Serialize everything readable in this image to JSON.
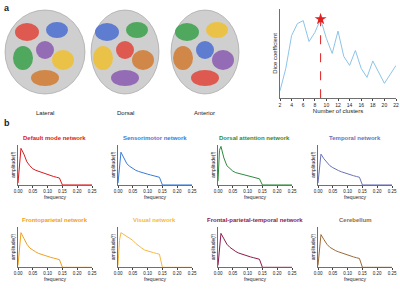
{
  "figure": {
    "panel_labels": [
      "a",
      "b"
    ],
    "views": [
      "Lateral",
      "Dorsal",
      "Anterior"
    ]
  },
  "chart_data": [
    {
      "type": "line",
      "x_label": "Number of clusters",
      "y_label": "Dice coefficient",
      "x": [
        2,
        3,
        4,
        5,
        6,
        7,
        8,
        9,
        10,
        11,
        12,
        13,
        14,
        15,
        16,
        17,
        18,
        19,
        20,
        21,
        22
      ],
      "series": [
        {
          "color": "#8cc4e8",
          "values": [
            0.35,
            0.5,
            0.72,
            0.8,
            0.82,
            0.68,
            0.74,
            0.83,
            0.7,
            0.6,
            0.75,
            0.58,
            0.52,
            0.62,
            0.5,
            0.44,
            0.55,
            0.47,
            0.4,
            0.46,
            0.52
          ]
        },
        {
          "type": "scatter",
          "marker": "star",
          "color": "#e02020",
          "x": [
            9
          ],
          "values": [
            0.83
          ]
        },
        {
          "type": "line",
          "line_style": "dash",
          "color": "#e02020",
          "x": [
            9,
            9
          ],
          "values": [
            0.3,
            0.83
          ]
        }
      ],
      "xlim": [
        2,
        22
      ],
      "xticks": [
        2,
        4,
        6,
        8,
        10,
        12,
        14,
        16,
        18,
        20,
        22
      ],
      "ylim": [
        0.3,
        0.9
      ],
      "tick_labels": "x",
      "grid": false
    },
    {
      "type": "line",
      "title": "Default mode network",
      "x_label": "frequency",
      "y_label": "amplitude(f)",
      "x": [
        0,
        0.005,
        0.01,
        0.02,
        0.03,
        0.04,
        0.05,
        0.06,
        0.07,
        0.08,
        0.09,
        0.1,
        0.11,
        0.12,
        0.13,
        0.14,
        0.15,
        0.16,
        0.2,
        0.25
      ],
      "series": [
        {
          "color": "#d7191c",
          "values": [
            0.05,
            0.6,
            0.95,
            0.8,
            0.6,
            0.5,
            0.42,
            0.38,
            0.35,
            0.33,
            0.3,
            0.27,
            0.25,
            0.22,
            0.2,
            0.18,
            0,
            0,
            0,
            0
          ]
        }
      ],
      "xlim": [
        0,
        0.25
      ],
      "xticks": [
        {
          "value": 0,
          "label": "0.00"
        },
        0.05,
        {
          "value": 0.1,
          "label": "0.10"
        },
        0.15,
        {
          "value": 0.2,
          "label": "0.20"
        },
        0.25
      ],
      "ylim": [
        0,
        1.05
      ],
      "tick_labels": "x",
      "grid": false
    },
    {
      "type": "line",
      "title": "Sensorimotor network",
      "x_label": "frequency",
      "y_label": "amplitude(f)",
      "x": [
        0,
        0.005,
        0.01,
        0.02,
        0.03,
        0.04,
        0.05,
        0.06,
        0.07,
        0.08,
        0.09,
        0.1,
        0.11,
        0.12,
        0.13,
        0.14,
        0.15,
        0.16,
        0.2,
        0.25
      ],
      "series": [
        {
          "color": "#3a7bd5",
          "values": [
            0.05,
            0.55,
            0.85,
            0.7,
            0.55,
            0.48,
            0.42,
            0.38,
            0.35,
            0.32,
            0.3,
            0.28,
            0.26,
            0.24,
            0.22,
            0.2,
            0,
            0,
            0,
            0
          ]
        }
      ],
      "xlim": [
        0,
        0.25
      ],
      "xticks": [
        {
          "value": 0,
          "label": "0.00"
        },
        0.05,
        {
          "value": 0.1,
          "label": "0.10"
        },
        0.15,
        {
          "value": 0.2,
          "label": "0.20"
        },
        0.25
      ],
      "ylim": [
        0,
        1.05
      ],
      "tick_labels": "x",
      "grid": false
    },
    {
      "type": "line",
      "title": "Dorsal attention network",
      "x_label": "frequency",
      "y_label": "amplitude(f)",
      "x": [
        0,
        0.005,
        0.01,
        0.02,
        0.03,
        0.04,
        0.05,
        0.06,
        0.07,
        0.08,
        0.09,
        0.1,
        0.11,
        0.12,
        0.13,
        0.14,
        0.15,
        0.16,
        0.2,
        0.25
      ],
      "series": [
        {
          "color": "#2e8b3d",
          "values": [
            0.1,
            0.9,
            1.0,
            0.7,
            0.5,
            0.42,
            0.36,
            0.32,
            0.3,
            0.28,
            0.26,
            0.24,
            0.22,
            0.2,
            0.18,
            0.16,
            0,
            0,
            0,
            0
          ]
        }
      ],
      "xlim": [
        0,
        0.25
      ],
      "xticks": [
        {
          "value": 0,
          "label": "0.00"
        },
        0.05,
        {
          "value": 0.1,
          "label": "0.10"
        },
        0.15,
        {
          "value": 0.2,
          "label": "0.20"
        },
        0.25
      ],
      "ylim": [
        0,
        1.05
      ],
      "tick_labels": "x",
      "grid": false
    },
    {
      "type": "line",
      "title": "Temporal network",
      "x_label": "frequency",
      "y_label": "amplitude(f)",
      "x": [
        0,
        0.005,
        0.01,
        0.02,
        0.03,
        0.04,
        0.05,
        0.06,
        0.07,
        0.08,
        0.09,
        0.1,
        0.11,
        0.12,
        0.13,
        0.14,
        0.15,
        0.16,
        0.2,
        0.25
      ],
      "series": [
        {
          "color": "#6b72b8",
          "values": [
            0.05,
            0.55,
            0.8,
            0.68,
            0.58,
            0.5,
            0.45,
            0.4,
            0.37,
            0.34,
            0.31,
            0.28,
            0.26,
            0.24,
            0.22,
            0.2,
            0,
            0,
            0,
            0
          ]
        }
      ],
      "xlim": [
        0,
        0.25
      ],
      "xticks": [
        {
          "value": 0,
          "label": "0.00"
        },
        0.05,
        {
          "value": 0.1,
          "label": "0.10"
        },
        0.15,
        {
          "value": 0.2,
          "label": "0.20"
        },
        0.25
      ],
      "ylim": [
        0,
        1.05
      ],
      "tick_labels": "x",
      "grid": false
    },
    {
      "type": "line",
      "title": "Frontoparietal network",
      "x_label": "frequency",
      "y_label": "amplitude(f)",
      "x": [
        0,
        0.005,
        0.01,
        0.02,
        0.03,
        0.04,
        0.05,
        0.06,
        0.07,
        0.08,
        0.09,
        0.1,
        0.11,
        0.12,
        0.13,
        0.14,
        0.15,
        0.16,
        0.2,
        0.25
      ],
      "series": [
        {
          "color": "#f0a020",
          "values": [
            0.05,
            0.6,
            0.9,
            0.75,
            0.6,
            0.5,
            0.44,
            0.4,
            0.36,
            0.33,
            0.3,
            0.28,
            0.26,
            0.24,
            0.22,
            0.2,
            0,
            0,
            0,
            0
          ]
        }
      ],
      "xlim": [
        0,
        0.25
      ],
      "xticks": [
        {
          "value": 0,
          "label": "0.00"
        },
        0.05,
        {
          "value": 0.1,
          "label": "0.10"
        },
        0.15,
        {
          "value": 0.2,
          "label": "0.20"
        },
        0.25
      ],
      "ylim": [
        0,
        1.05
      ],
      "tick_labels": "x",
      "grid": false
    },
    {
      "type": "line",
      "title": "Visual network",
      "x_label": "frequency",
      "y_label": "amplitude(f)",
      "x": [
        0,
        0.005,
        0.01,
        0.02,
        0.03,
        0.04,
        0.05,
        0.06,
        0.07,
        0.08,
        0.09,
        0.1,
        0.11,
        0.12,
        0.13,
        0.14,
        0.15,
        0.16,
        0.2,
        0.25
      ],
      "series": [
        {
          "color": "#f5b942",
          "values": [
            0.05,
            0.7,
            0.9,
            0.85,
            0.8,
            0.75,
            0.7,
            0.62,
            0.55,
            0.5,
            0.45,
            0.42,
            0.4,
            0.38,
            0.36,
            0.34,
            0,
            0,
            0,
            0
          ]
        }
      ],
      "xlim": [
        0,
        0.25
      ],
      "xticks": [
        {
          "value": 0,
          "label": "0.00"
        },
        0.05,
        {
          "value": 0.1,
          "label": "0.10"
        },
        0.15,
        {
          "value": 0.2,
          "label": "0.20"
        },
        0.25
      ],
      "ylim": [
        0,
        1.05
      ],
      "tick_labels": "x",
      "grid": false
    },
    {
      "type": "line",
      "title": "Frontal-parietal-temporal network",
      "x_label": "frequency",
      "y_label": "amplitude(f)",
      "x": [
        0,
        0.005,
        0.01,
        0.02,
        0.03,
        0.04,
        0.05,
        0.06,
        0.07,
        0.08,
        0.09,
        0.1,
        0.11,
        0.12,
        0.13,
        0.14,
        0.15,
        0.16,
        0.2,
        0.25
      ],
      "series": [
        {
          "color": "#8b1a4a",
          "values": [
            0.05,
            0.6,
            0.88,
            0.74,
            0.6,
            0.52,
            0.46,
            0.41,
            0.37,
            0.34,
            0.31,
            0.29,
            0.27,
            0.25,
            0.23,
            0.21,
            0,
            0,
            0,
            0
          ]
        }
      ],
      "xlim": [
        0,
        0.25
      ],
      "xticks": [
        {
          "value": 0,
          "label": "0.00"
        },
        0.05,
        {
          "value": 0.1,
          "label": "0.10"
        },
        0.15,
        {
          "value": 0.2,
          "label": "0.20"
        },
        0.25
      ],
      "ylim": [
        0,
        1.05
      ],
      "tick_labels": "x",
      "grid": false
    },
    {
      "type": "line",
      "title": "Cerebellum",
      "x_label": "frequency",
      "y_label": "amplitude(f)",
      "x": [
        0,
        0.005,
        0.01,
        0.02,
        0.03,
        0.04,
        0.05,
        0.06,
        0.07,
        0.08,
        0.09,
        0.1,
        0.11,
        0.12,
        0.13,
        0.14,
        0.15,
        0.16,
        0.2,
        0.25
      ],
      "series": [
        {
          "color": "#9a6a3a",
          "values": [
            0.05,
            0.55,
            0.85,
            0.72,
            0.6,
            0.52,
            0.47,
            0.43,
            0.4,
            0.37,
            0.34,
            0.31,
            0.29,
            0.27,
            0.25,
            0.23,
            0,
            0,
            0,
            0
          ]
        }
      ],
      "xlim": [
        0,
        0.25
      ],
      "xticks": [
        {
          "value": 0,
          "label": "0.00"
        },
        0.05,
        {
          "value": 0.1,
          "label": "0.10"
        },
        0.15,
        {
          "value": 0.2,
          "label": "0.20"
        },
        0.25
      ],
      "ylim": [
        0,
        1.05
      ],
      "tick_labels": "x",
      "grid": false
    }
  ]
}
